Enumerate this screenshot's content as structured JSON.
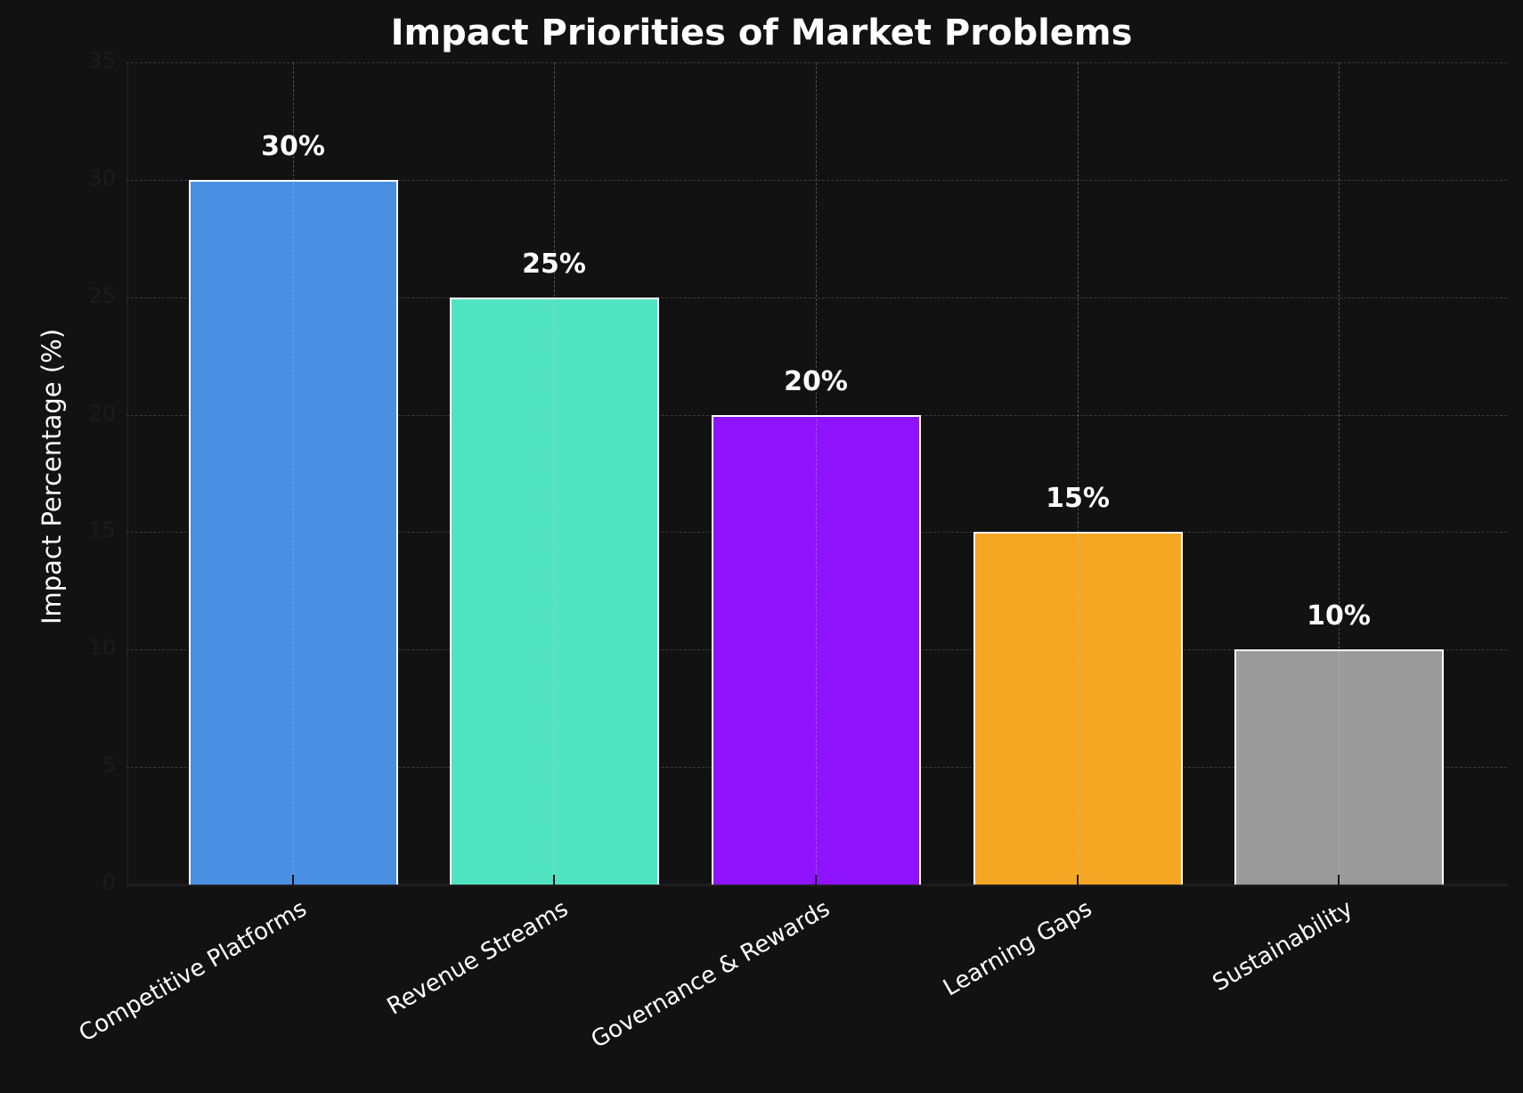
{
  "chart_data": {
    "type": "bar",
    "title": "Impact Priorities of Market Problems",
    "xlabel": "",
    "ylabel": "Impact Percentage (%)",
    "ylim": [
      0,
      35
    ],
    "yticks": [
      0,
      5,
      10,
      15,
      20,
      25,
      30,
      35
    ],
    "grid": true,
    "legend": null,
    "categories": [
      "Competitive Platforms",
      "Revenue Streams",
      "Governance & Rewards",
      "Learning Gaps",
      "Sustainability"
    ],
    "values": [
      30,
      25,
      20,
      15,
      10
    ],
    "data_labels": [
      "30%",
      "25%",
      "20%",
      "15%",
      "10%"
    ],
    "colors": [
      "#4A90E2",
      "#50E3C2",
      "#9013FE",
      "#F5A623",
      "#9B9B9B"
    ]
  },
  "theme": {
    "background": "#121212",
    "bar_edge": "#FFFFFF"
  }
}
